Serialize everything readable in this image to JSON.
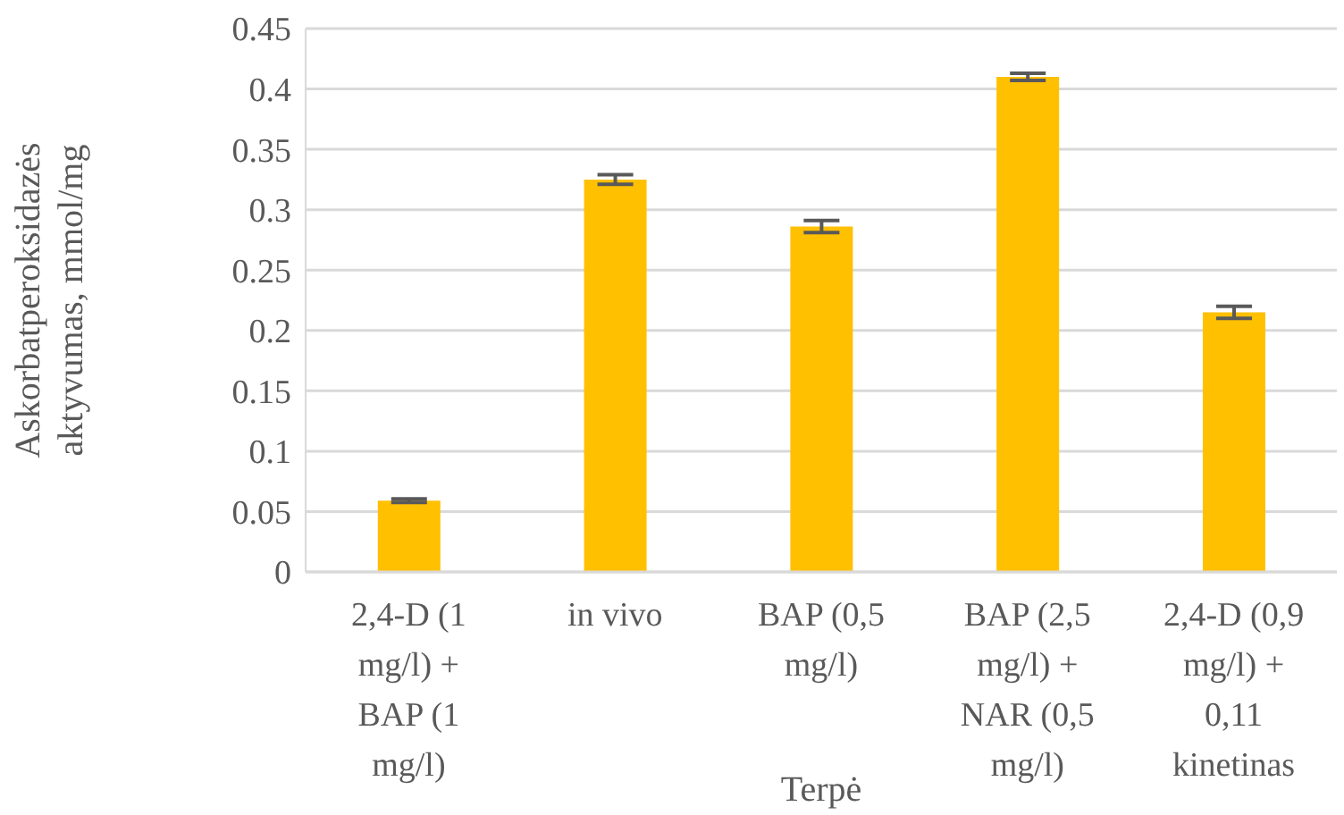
{
  "chart_data": {
    "type": "bar",
    "xlabel": "Terpė",
    "ylabel": "Askorbatperoksidazės aktyvumas, mmol/mg",
    "categories": [
      "2,4-D (1 mg/l) + BAP (1 mg/l)",
      "in vivo",
      "BAP (0,5 mg/l)",
      "BAP (2,5 mg/l) + NAR (0,5 mg/l)",
      "2,4-D (0,9 mg/l) + 0,11 kinetinas"
    ],
    "values": [
      0.059,
      0.325,
      0.286,
      0.41,
      0.215
    ],
    "errors": [
      0.0015,
      0.004,
      0.005,
      0.003,
      0.005
    ],
    "color": "#ffc000",
    "ylim": [
      0,
      0.45
    ],
    "yticks": [
      0,
      0.05,
      0.1,
      0.15,
      0.2,
      0.25,
      0.3,
      0.35,
      0.4,
      0.45
    ],
    "grid": "y",
    "legend": false
  }
}
